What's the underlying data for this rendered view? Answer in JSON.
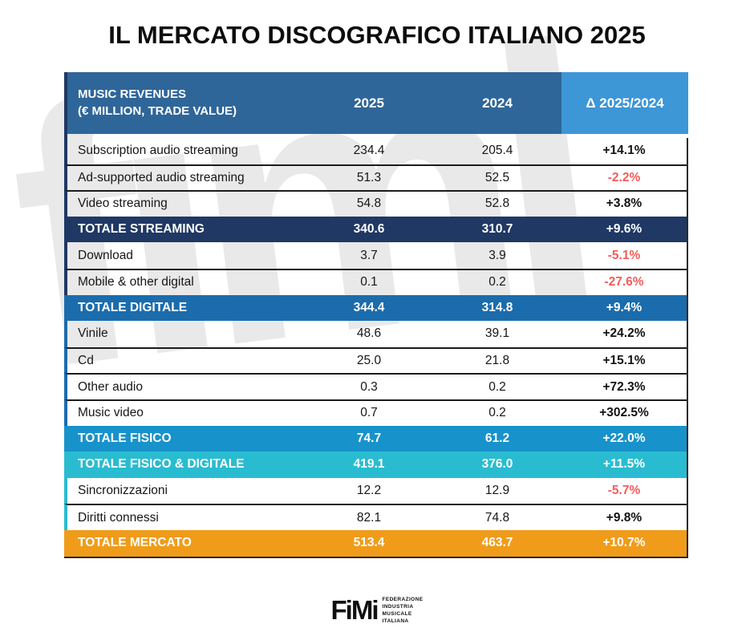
{
  "title": "IL MERCATO DISCOGRAFICO ITALIANO 2025",
  "watermark_text": "fimi",
  "colors": {
    "header_bg": "#2F6699",
    "header_delta_bg": "#3D96D6",
    "navy": "#1F3864",
    "blue": "#1B6CAC",
    "light_blue": "#1792CB",
    "teal": "#29BCD1",
    "orange": "#F09C1A",
    "negative": "#F75B5B",
    "positive": "#131313",
    "watermark": "#E9E9E9"
  },
  "header": {
    "label_line1": "MUSIC REVENUES",
    "label_line2": "(€ MILLION, TRADE VALUE)",
    "col_2025": "2025",
    "col_2024": "2024",
    "col_delta": "Δ 2025/2024"
  },
  "rows": [
    {
      "label": "Subscription audio streaming",
      "v2025": "234.4",
      "v2024": "205.4",
      "delta": "+14.1%",
      "kind": "item",
      "negative": false,
      "accent": "#1F3864",
      "bg": ""
    },
    {
      "label": "Ad-supported audio streaming",
      "v2025": "51.3",
      "v2024": "52.5",
      "delta": "-2.2%",
      "kind": "item",
      "negative": true,
      "accent": "#1F3864",
      "bg": ""
    },
    {
      "label": "Video streaming",
      "v2025": "54.8",
      "v2024": "52.8",
      "delta": "+3.8%",
      "kind": "item",
      "negative": false,
      "accent": "#1F3864",
      "bg": ""
    },
    {
      "label": "TOTALE STREAMING",
      "v2025": "340.6",
      "v2024": "310.7",
      "delta": "+9.6%",
      "kind": "total",
      "negative": false,
      "accent": "#1F3864",
      "bg": "#1F3864"
    },
    {
      "label": "Download",
      "v2025": "3.7",
      "v2024": "3.9",
      "delta": "-5.1%",
      "kind": "item",
      "negative": true,
      "accent": "#1F3864",
      "bg": ""
    },
    {
      "label": "Mobile & other digital",
      "v2025": "0.1",
      "v2024": "0.2",
      "delta": "-27.6%",
      "kind": "item",
      "negative": true,
      "accent": "#1F3864",
      "bg": ""
    },
    {
      "label": "TOTALE DIGITALE",
      "v2025": "344.4",
      "v2024": "314.8",
      "delta": "+9.4%",
      "kind": "total",
      "negative": false,
      "accent": "#1B6CAC",
      "bg": "#1B6CAC"
    },
    {
      "label": "Vinile",
      "v2025": "48.6",
      "v2024": "39.1",
      "delta": "+24.2%",
      "kind": "item",
      "negative": false,
      "accent": "#1B6CAC",
      "bg": ""
    },
    {
      "label": "Cd",
      "v2025": "25.0",
      "v2024": "21.8",
      "delta": "+15.1%",
      "kind": "item",
      "negative": false,
      "accent": "#1B6CAC",
      "bg": ""
    },
    {
      "label": "Other audio",
      "v2025": "0.3",
      "v2024": "0.2",
      "delta": "+72.3%",
      "kind": "item",
      "negative": false,
      "accent": "#1B6CAC",
      "bg": ""
    },
    {
      "label": "Music video",
      "v2025": "0.7",
      "v2024": "0.2",
      "delta": "+302.5%",
      "kind": "item",
      "negative": false,
      "accent": "#1B6CAC",
      "bg": ""
    },
    {
      "label": "TOTALE FISICO",
      "v2025": "74.7",
      "v2024": "61.2",
      "delta": "+22.0%",
      "kind": "total",
      "negative": false,
      "accent": "#1792CB",
      "bg": "#1792CB"
    },
    {
      "label": "TOTALE FISICO & DIGITALE",
      "v2025": "419.1",
      "v2024": "376.0",
      "delta": "+11.5%",
      "kind": "total",
      "negative": false,
      "accent": "#29BCD1",
      "bg": "#29BCD1"
    },
    {
      "label": "Sincronizzazioni",
      "v2025": "12.2",
      "v2024": "12.9",
      "delta": "-5.7%",
      "kind": "item",
      "negative": true,
      "accent": "#29BCD1",
      "bg": ""
    },
    {
      "label": "Diritti connessi",
      "v2025": "82.1",
      "v2024": "74.8",
      "delta": "+9.8%",
      "kind": "item",
      "negative": false,
      "accent": "#29BCD1",
      "bg": ""
    },
    {
      "label": "TOTALE MERCATO",
      "v2025": "513.4",
      "v2024": "463.7",
      "delta": "+10.7%",
      "kind": "total",
      "negative": false,
      "accent": "#F09C1A",
      "bg": "#F09C1A"
    }
  ],
  "footer": {
    "logo_text": "FiMi",
    "sub_lines": [
      "FEDERAZIONE",
      "INDUSTRIA",
      "MUSICALE",
      "ITALIANA"
    ]
  },
  "chart_data": {
    "type": "table",
    "title": "IL MERCATO DISCOGRAFICO ITALIANO 2025",
    "columns": [
      "MUSIC REVENUES (€ MILLION, TRADE VALUE)",
      "2025",
      "2024",
      "Δ 2025/2024"
    ],
    "rows": [
      [
        "Subscription audio streaming",
        234.4,
        205.4,
        "+14.1%"
      ],
      [
        "Ad-supported audio streaming",
        51.3,
        52.5,
        "-2.2%"
      ],
      [
        "Video streaming",
        54.8,
        52.8,
        "+3.8%"
      ],
      [
        "TOTALE STREAMING",
        340.6,
        310.7,
        "+9.6%"
      ],
      [
        "Download",
        3.7,
        3.9,
        "-5.1%"
      ],
      [
        "Mobile & other digital",
        0.1,
        0.2,
        "-27.6%"
      ],
      [
        "TOTALE DIGITALE",
        344.4,
        314.8,
        "+9.4%"
      ],
      [
        "Vinile",
        48.6,
        39.1,
        "+24.2%"
      ],
      [
        "Cd",
        25.0,
        21.8,
        "+15.1%"
      ],
      [
        "Other audio",
        0.3,
        0.2,
        "+72.3%"
      ],
      [
        "Music video",
        0.7,
        0.2,
        "+302.5%"
      ],
      [
        "TOTALE FISICO",
        74.7,
        61.2,
        "+22.0%"
      ],
      [
        "TOTALE FISICO & DIGITALE",
        419.1,
        376.0,
        "+11.5%"
      ],
      [
        "Sincronizzazioni",
        12.2,
        12.9,
        "-5.7%"
      ],
      [
        "Diritti connessi",
        82.1,
        74.8,
        "+9.8%"
      ],
      [
        "TOTALE MERCATO",
        513.4,
        463.7,
        "+10.7%"
      ]
    ]
  }
}
